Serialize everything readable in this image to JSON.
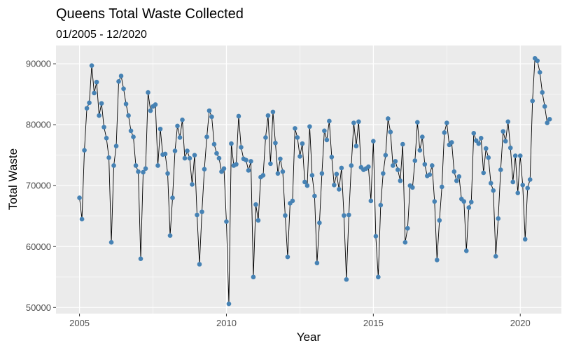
{
  "chart_data": {
    "type": "line",
    "title": "Queens Total Waste Collected",
    "subtitle": "01/2005 - 12/2020",
    "xlabel": "Year",
    "ylabel": "Total Waste",
    "xlim": [
      2004.2,
      2021.4
    ],
    "ylim": [
      49000,
      93000
    ],
    "x_ticks": [
      2005,
      2010,
      2015,
      2020
    ],
    "y_ticks": [
      50000,
      60000,
      70000,
      80000,
      90000
    ],
    "y_tick_labels": [
      "50000",
      "60000",
      "70000",
      "80000",
      "90000"
    ],
    "grid": true,
    "legend": "none",
    "colors": {
      "panel": "#EBEBEB",
      "grid": "#FFFFFF",
      "line": "#000000",
      "point": "#4682B4"
    },
    "series": [
      {
        "x_start": 2005.0,
        "x_step": 0.083333,
        "values": [
          68000,
          64500,
          75800,
          82700,
          83600,
          89700,
          85200,
          87000,
          81500,
          83500,
          79600,
          77800,
          74600,
          60700,
          73300,
          76500,
          87100,
          88000,
          85900,
          83400,
          81500,
          79000,
          78000,
          73300,
          72300,
          58000,
          72200,
          72800,
          85300,
          82300,
          83000,
          83300,
          73300,
          79300,
          75100,
          75200,
          72000,
          61800,
          68000,
          75700,
          79800,
          77900,
          80800,
          74500,
          75700,
          74500,
          70200,
          75000,
          65200,
          57100,
          65700,
          72700,
          78000,
          82300,
          81300,
          76800,
          75300,
          74500,
          72300,
          72800,
          64100,
          50600,
          76900,
          73300,
          73500,
          81400,
          76300,
          74400,
          74200,
          72500,
          74000,
          55000,
          66900,
          64300,
          71400,
          71700,
          77900,
          81500,
          73600,
          82100,
          77000,
          72000,
          74400,
          72300,
          65100,
          58300,
          67100,
          67500,
          79400,
          77900,
          74800,
          76900,
          70600,
          70000,
          79700,
          71700,
          68300,
          57300,
          63900,
          72000,
          79000,
          77500,
          80600,
          74700,
          70100,
          71900,
          69400,
          72900,
          65100,
          54600,
          65200,
          73300,
          80300,
          76500,
          80500,
          73000,
          72600,
          72800,
          73100,
          67500,
          77300,
          61700,
          55000,
          66800,
          72000,
          75000,
          81000,
          78800,
          73300,
          74000,
          72600,
          70800,
          76800,
          60700,
          63000,
          70000,
          69700,
          74100,
          80400,
          75800,
          78000,
          73500,
          71600,
          71800,
          73300,
          67400,
          57800,
          64300,
          69800,
          78700,
          80300,
          76700,
          77100,
          72300,
          70800,
          71500,
          67800,
          67400,
          59300,
          66400,
          67300,
          78600,
          77400,
          76900,
          77800,
          72100,
          76100,
          74600,
          70400,
          69200,
          58400,
          64600,
          72600,
          78900,
          77300,
          80500,
          76200,
          70600,
          74900,
          68800,
          74900,
          70100,
          61200,
          69600,
          71000,
          83900,
          90900,
          90500,
          88600,
          85300,
          83000,
          80300,
          80900
        ]
      }
    ]
  }
}
